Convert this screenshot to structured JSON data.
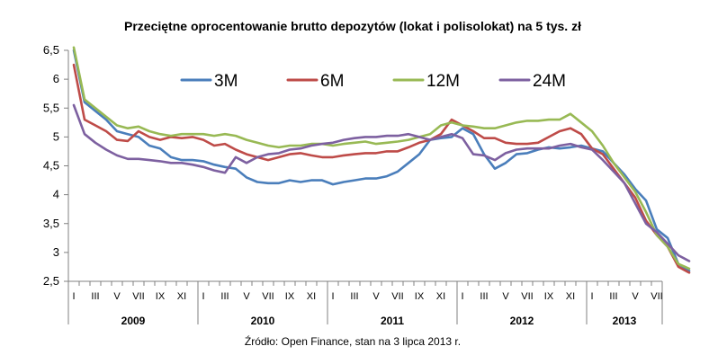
{
  "chart_data": {
    "type": "line",
    "title": "Przeciętne oprocentowanie  brutto depozytów (lokat i polisolokat) na 5 tys. zł",
    "source": "Źródło: Open Finance, stan na 3 lipca 2013 r.",
    "ylim": [
      2.5,
      6.5
    ],
    "yticks": [
      "6,5",
      "6",
      "5,5",
      "5",
      "4,5",
      "4",
      "3,5",
      "3",
      "2,5"
    ],
    "ytick_values": [
      6.5,
      6,
      5.5,
      5,
      4.5,
      4,
      3.5,
      3,
      2.5
    ],
    "grid": false,
    "legend_position": "top",
    "years": [
      {
        "label": "2009",
        "months": 12
      },
      {
        "label": "2010",
        "months": 12
      },
      {
        "label": "2011",
        "months": 12
      },
      {
        "label": "2012",
        "months": 12
      },
      {
        "label": "2013",
        "months": 7
      }
    ],
    "month_labels": [
      "I",
      "III",
      "V",
      "VII",
      "IX",
      "XI"
    ],
    "month_labels_2013": [
      "I",
      "III",
      "V",
      "VII"
    ],
    "series": [
      {
        "name": "3M",
        "color": "#4a7ebb",
        "values": [
          6.5,
          5.6,
          5.45,
          5.3,
          5.1,
          5.05,
          5.0,
          4.85,
          4.8,
          4.65,
          4.6,
          4.6,
          4.58,
          4.52,
          4.48,
          4.45,
          4.3,
          4.22,
          4.2,
          4.2,
          4.25,
          4.22,
          4.25,
          4.25,
          4.18,
          4.22,
          4.25,
          4.28,
          4.28,
          4.32,
          4.4,
          4.55,
          4.7,
          4.95,
          4.98,
          5.0,
          5.15,
          5.05,
          4.7,
          4.45,
          4.55,
          4.7,
          4.72,
          4.78,
          4.82,
          4.8,
          4.82,
          4.85,
          4.8,
          4.75,
          4.55,
          4.35,
          4.1,
          3.9,
          3.4,
          3.25,
          2.8,
          2.68
        ]
      },
      {
        "name": "6M",
        "color": "#be4b48",
        "values": [
          6.25,
          5.3,
          5.2,
          5.1,
          4.95,
          4.93,
          5.1,
          5.0,
          4.95,
          5.0,
          4.98,
          5.0,
          4.95,
          4.85,
          4.88,
          4.78,
          4.7,
          4.65,
          4.6,
          4.65,
          4.7,
          4.72,
          4.68,
          4.65,
          4.65,
          4.68,
          4.7,
          4.72,
          4.72,
          4.75,
          4.75,
          4.82,
          4.9,
          4.95,
          5.05,
          5.3,
          5.2,
          5.1,
          4.98,
          4.98,
          4.9,
          4.88,
          4.88,
          4.9,
          5.0,
          5.1,
          5.15,
          5.05,
          4.8,
          4.7,
          4.45,
          4.2,
          3.95,
          3.55,
          3.3,
          3.1,
          2.75,
          2.65
        ]
      },
      {
        "name": "12M",
        "color": "#98b954",
        "values": [
          6.55,
          5.65,
          5.5,
          5.35,
          5.2,
          5.15,
          5.18,
          5.1,
          5.05,
          5.02,
          5.05,
          5.05,
          5.05,
          5.02,
          5.05,
          5.02,
          4.95,
          4.9,
          4.85,
          4.82,
          4.85,
          4.85,
          4.88,
          4.88,
          4.85,
          4.88,
          4.9,
          4.92,
          4.88,
          4.9,
          4.92,
          4.95,
          5.0,
          5.05,
          5.2,
          5.25,
          5.2,
          5.18,
          5.15,
          5.15,
          5.2,
          5.25,
          5.28,
          5.28,
          5.3,
          5.3,
          5.4,
          5.25,
          5.1,
          4.85,
          4.55,
          4.3,
          4.05,
          3.7,
          3.3,
          3.1,
          2.8,
          2.72
        ]
      },
      {
        "name": "24M",
        "color": "#7d60a0",
        "values": [
          5.55,
          5.05,
          4.9,
          4.78,
          4.68,
          4.62,
          4.62,
          4.6,
          4.58,
          4.55,
          4.55,
          4.52,
          4.48,
          4.42,
          4.38,
          4.65,
          4.55,
          4.65,
          4.7,
          4.72,
          4.78,
          4.8,
          4.85,
          4.88,
          4.9,
          4.95,
          4.98,
          5.0,
          5.0,
          5.02,
          5.02,
          5.05,
          5.0,
          4.95,
          5.0,
          5.05,
          4.98,
          4.7,
          4.68,
          4.6,
          4.72,
          4.78,
          4.8,
          4.8,
          4.8,
          4.85,
          4.88,
          4.82,
          4.78,
          4.6,
          4.4,
          4.2,
          3.85,
          3.5,
          3.35,
          3.15,
          2.95,
          2.85
        ]
      }
    ]
  }
}
